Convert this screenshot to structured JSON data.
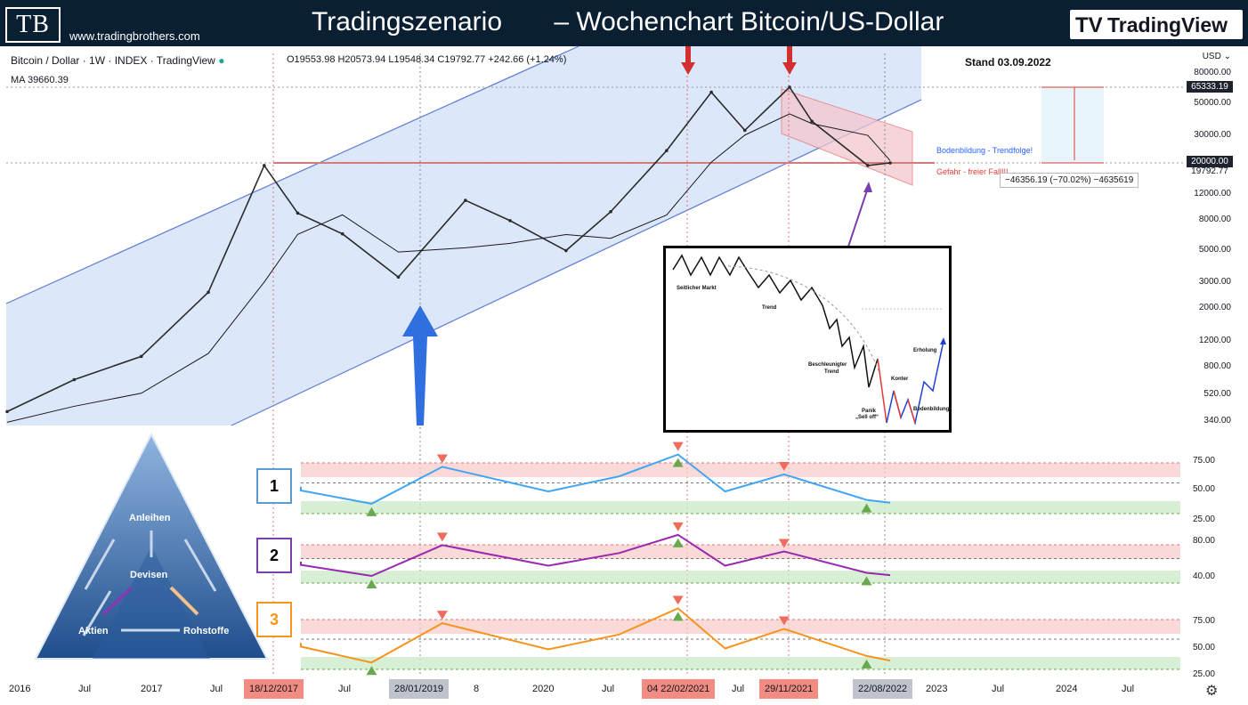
{
  "header": {
    "logo": "TB",
    "url": "www.tradingbrothers.com",
    "title": "Tradingszenario       – Wochenchart Bitcoin/US-Dollar",
    "brand_icon": "TV",
    "brand": "TradingView"
  },
  "legend": {
    "symbol": "Bitcoin / Dollar · 1W · INDEX · TradingView",
    "ohlc": "O19553.98 H20573.94 L19548.34 C19792.77 +242.66 (+1.24%)",
    "ma": "MA  39660.39"
  },
  "annotations": {
    "stand": "Stand 03.09.2022",
    "boden": "Bodenbildung - Trendfolge!",
    "gefahr": "Gefahr - freier Fall!!!",
    "measure": "−46356.19 (−70.02%) −4635619"
  },
  "price_axis": {
    "currency": "USD",
    "labels": [
      "80000.00",
      "50000.00",
      "30000.00",
      "12000.00",
      "8000.00",
      "5000.00",
      "3000.00",
      "2000.00",
      "1200.00",
      "800.00",
      "520.00",
      "340.00"
    ],
    "tags": [
      "65333.19",
      "20000.00",
      "19792.77"
    ]
  },
  "osc_axes": {
    "o1": [
      "75.00",
      "50.00",
      "25.00"
    ],
    "o2": [
      "80.00",
      "40.00"
    ],
    "o3": [
      "75.00",
      "50.00",
      "25.00"
    ]
  },
  "panels": [
    "1",
    "2",
    "3"
  ],
  "time_axis": {
    "labels": [
      "2016",
      "Jul",
      "2017",
      "Jul",
      "Jul",
      "8",
      "2020",
      "Jul",
      "Jul",
      "2023",
      "Jul",
      "2024",
      "Jul"
    ],
    "tags": [
      "18/12/2017",
      "28/01/2019",
      "04  22/02/2021",
      "29/11/2021",
      "22/08/2022"
    ]
  },
  "pyramid": {
    "top": "Anleihen",
    "center": "Devisen",
    "left": "Aktien",
    "right": "Rohstoffe"
  },
  "inset": {
    "l1": "Seitlicher Markt",
    "l2": "Trend",
    "l3": "Beschleunigter",
    "l3b": "Trend",
    "l4": "Panik",
    "l4b": "„Sell off“",
    "l5": "Konter",
    "l6": "Bodenbildung",
    "l7": "Erholung"
  },
  "colors": {
    "channel": "#d3e1fa",
    "channel_line": "#5b7bd5",
    "osc1": "#42a5f5",
    "osc2": "#9c27b0",
    "osc3": "#f7941d",
    "down_marker": "#ef6c5d",
    "up_marker": "#6aa84f"
  },
  "chart_data": [
    {
      "type": "line",
      "scale": "log",
      "x": [
        "2016-01",
        "2016-07",
        "2017-01",
        "2017-07",
        "2017-12",
        "2018-03",
        "2018-07",
        "2018-12",
        "2019-06",
        "2019-10",
        "2020-03",
        "2020-07",
        "2020-12",
        "2021-04",
        "2021-07",
        "2021-11",
        "2022-01",
        "2022-06",
        "2022-08"
      ],
      "series": [
        {
          "values": [
            400,
            660,
            950,
            2600,
            19000,
            9000,
            6500,
            3300,
            11000,
            8000,
            5000,
            9200,
            24000,
            60000,
            33000,
            65000,
            38000,
            19000,
            19792.77
          ]
        }
      ],
      "ylim": [
        340,
        80000
      ]
    },
    {
      "type": "line",
      "ylim": [
        25,
        75
      ],
      "x": [
        "2018-06",
        "2018-12",
        "2019-06",
        "2020-03",
        "2020-09",
        "2021-02",
        "2021-06",
        "2021-11",
        "2022-06",
        "2022-08"
      ],
      "series": [
        {
          "values": [
            47,
            33,
            72,
            46,
            62,
            85,
            46,
            64,
            37,
            34
          ]
        },
        {
          "values": [
            47,
            33,
            72,
            46,
            62,
            85,
            46,
            64,
            37,
            34
          ]
        },
        {
          "values": [
            47,
            30,
            72,
            44,
            60,
            88,
            45,
            66,
            37,
            32
          ]
        }
      ]
    }
  ]
}
